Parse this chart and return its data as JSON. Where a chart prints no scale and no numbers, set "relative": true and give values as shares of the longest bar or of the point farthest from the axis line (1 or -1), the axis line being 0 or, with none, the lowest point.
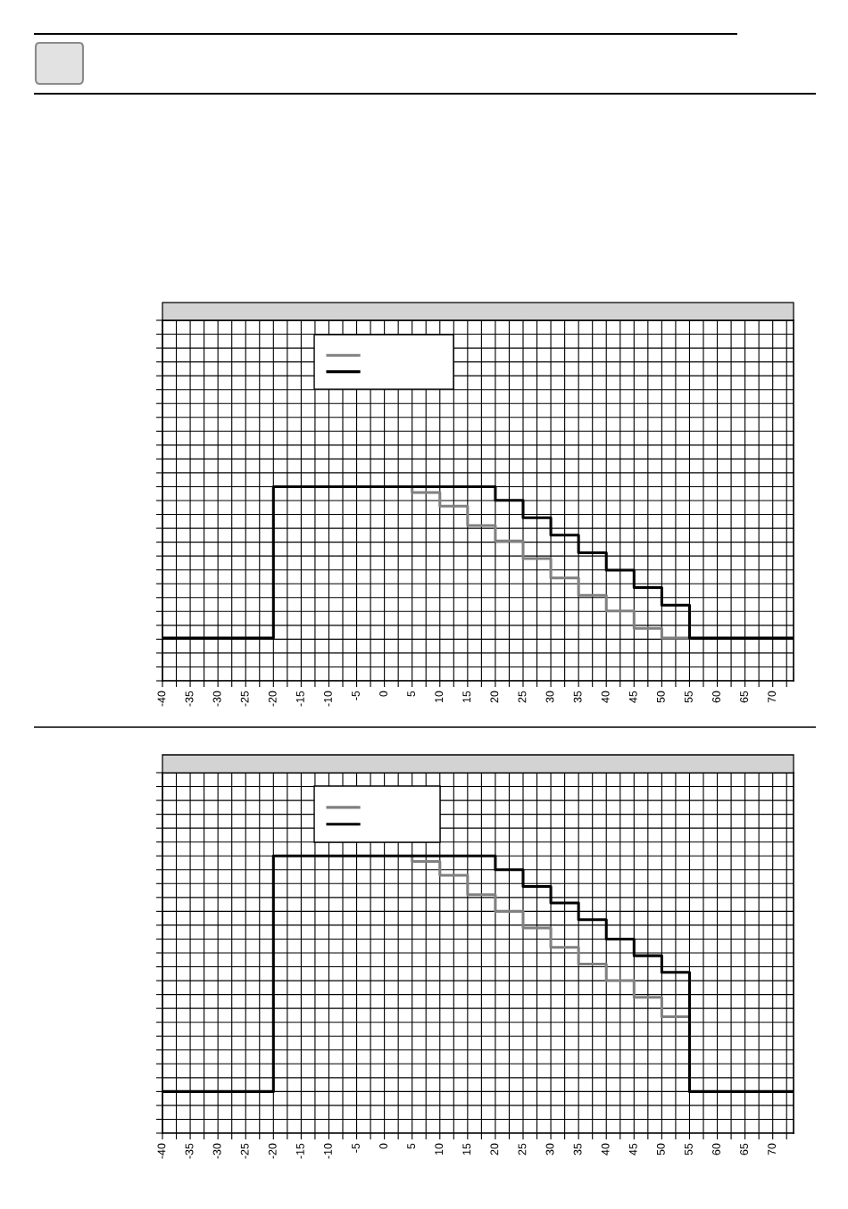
{
  "chart_data": [
    {
      "type": "step",
      "relative": true,
      "xlim": [
        -40,
        73.75
      ],
      "xticks": [
        -40,
        {
          "value": -37.5,
          "label": null
        },
        -35,
        {
          "value": -32.5,
          "label": null
        },
        -30,
        {
          "value": -27.5,
          "label": null
        },
        -25,
        {
          "value": -22.5,
          "label": null
        },
        -20,
        {
          "value": -17.5,
          "label": null
        },
        -15,
        {
          "value": -12.5,
          "label": null
        },
        -10,
        {
          "value": -7.5,
          "label": null
        },
        -5,
        {
          "value": -2.5,
          "label": null
        },
        0,
        {
          "value": 2.5,
          "label": null
        },
        5,
        {
          "value": 7.5,
          "label": null
        },
        10,
        {
          "value": 12.5,
          "label": null
        },
        15,
        {
          "value": 17.5,
          "label": null
        },
        20,
        {
          "value": 22.5,
          "label": null
        },
        25,
        {
          "value": 27.5,
          "label": null
        },
        30,
        {
          "value": 32.5,
          "label": null
        },
        35,
        {
          "value": 37.5,
          "label": null
        },
        40,
        {
          "value": 42.5,
          "label": null
        },
        45,
        {
          "value": 47.5,
          "label": null
        },
        50,
        {
          "value": 52.5,
          "label": null
        },
        55,
        {
          "value": 57.5,
          "label": null
        },
        60,
        {
          "value": 62.5,
          "label": null
        },
        65,
        {
          "value": 67.5,
          "label": null
        },
        70,
        {
          "value": 72.5,
          "label": null
        }
      ],
      "grid": true,
      "tick_labels": "x",
      "series": [
        {
          "color": "#808080",
          "x": [
            5,
            5,
            10,
            15,
            20,
            25,
            30,
            35,
            40,
            45,
            50,
            55
          ],
          "values": [
            1,
            0.97,
            0.9,
            0.8,
            0.72,
            0.63,
            0.53,
            0.44,
            0.36,
            0.27,
            0.22,
            0.22
          ]
        },
        {
          "color": "#000000",
          "x": [
            -40,
            -20,
            20,
            25,
            30,
            35,
            40,
            45,
            50,
            55,
            73.75
          ],
          "values": [
            0.22,
            1,
            0.93,
            0.84,
            0.75,
            0.66,
            0.57,
            0.48,
            0.39,
            0.22,
            0.22
          ]
        }
      ]
    },
    {
      "type": "step",
      "relative": true,
      "xlim": [
        -40,
        73.75
      ],
      "xticks": [
        -40,
        {
          "value": -37.5,
          "label": null
        },
        -35,
        {
          "value": -32.5,
          "label": null
        },
        -30,
        {
          "value": -27.5,
          "label": null
        },
        -25,
        {
          "value": -22.5,
          "label": null
        },
        -20,
        {
          "value": -17.5,
          "label": null
        },
        -15,
        {
          "value": -12.5,
          "label": null
        },
        -10,
        {
          "value": -7.5,
          "label": null
        },
        -5,
        {
          "value": -2.5,
          "label": null
        },
        0,
        {
          "value": 2.5,
          "label": null
        },
        5,
        {
          "value": 7.5,
          "label": null
        },
        10,
        {
          "value": 12.5,
          "label": null
        },
        15,
        {
          "value": 17.5,
          "label": null
        },
        20,
        {
          "value": 22.5,
          "label": null
        },
        25,
        {
          "value": 27.5,
          "label": null
        },
        30,
        {
          "value": 32.5,
          "label": null
        },
        35,
        {
          "value": 37.5,
          "label": null
        },
        40,
        {
          "value": 42.5,
          "label": null
        },
        45,
        {
          "value": 47.5,
          "label": null
        },
        50,
        {
          "value": 52.5,
          "label": null
        },
        55,
        {
          "value": 57.5,
          "label": null
        },
        60,
        {
          "value": 62.5,
          "label": null
        },
        65,
        {
          "value": 67.5,
          "label": null
        },
        70,
        {
          "value": 72.5,
          "label": null
        }
      ],
      "grid": true,
      "tick_labels": "x",
      "series": [
        {
          "color": "#808080",
          "x": [
            5,
            5,
            10,
            15,
            20,
            25,
            30,
            35,
            40,
            45,
            50,
            55
          ],
          "values": [
            1,
            0.98,
            0.93,
            0.86,
            0.8,
            0.74,
            0.67,
            0.61,
            0.55,
            0.49,
            0.42,
            0.42
          ]
        },
        {
          "color": "#000000",
          "x": [
            -40,
            -20,
            20,
            25,
            30,
            35,
            40,
            45,
            50,
            55,
            73.75
          ],
          "values": [
            0.15,
            1,
            0.95,
            0.89,
            0.83,
            0.77,
            0.7,
            0.64,
            0.58,
            0.15,
            0.15
          ]
        }
      ]
    }
  ]
}
